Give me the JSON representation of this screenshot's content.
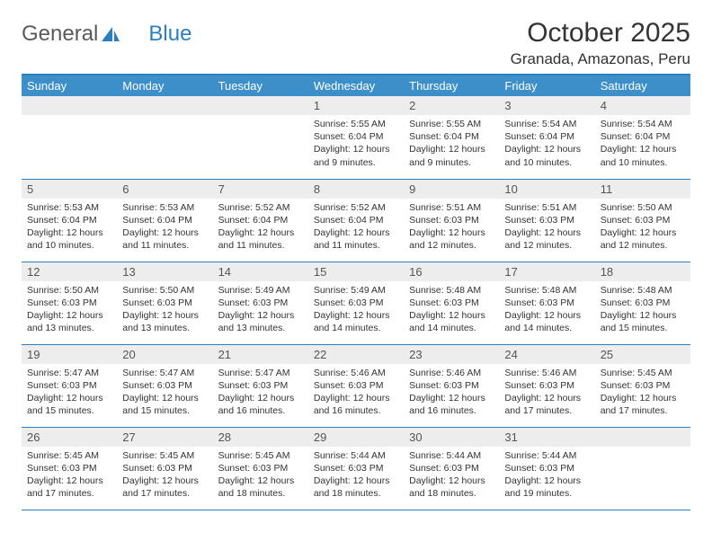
{
  "logo": {
    "text1": "General",
    "text2": "Blue"
  },
  "header": {
    "month_title": "October 2025",
    "location": "Granada, Amazonas, Peru"
  },
  "colors": {
    "header_bg": "#3d8fc9",
    "border": "#2b7fbf",
    "daynum_bg": "#ededed"
  },
  "days_of_week": [
    "Sunday",
    "Monday",
    "Tuesday",
    "Wednesday",
    "Thursday",
    "Friday",
    "Saturday"
  ],
  "weeks": [
    [
      null,
      null,
      null,
      {
        "n": "1",
        "sr": "5:55 AM",
        "ss": "6:04 PM",
        "dl": "12 hours and 9 minutes."
      },
      {
        "n": "2",
        "sr": "5:55 AM",
        "ss": "6:04 PM",
        "dl": "12 hours and 9 minutes."
      },
      {
        "n": "3",
        "sr": "5:54 AM",
        "ss": "6:04 PM",
        "dl": "12 hours and 10 minutes."
      },
      {
        "n": "4",
        "sr": "5:54 AM",
        "ss": "6:04 PM",
        "dl": "12 hours and 10 minutes."
      }
    ],
    [
      {
        "n": "5",
        "sr": "5:53 AM",
        "ss": "6:04 PM",
        "dl": "12 hours and 10 minutes."
      },
      {
        "n": "6",
        "sr": "5:53 AM",
        "ss": "6:04 PM",
        "dl": "12 hours and 11 minutes."
      },
      {
        "n": "7",
        "sr": "5:52 AM",
        "ss": "6:04 PM",
        "dl": "12 hours and 11 minutes."
      },
      {
        "n": "8",
        "sr": "5:52 AM",
        "ss": "6:04 PM",
        "dl": "12 hours and 11 minutes."
      },
      {
        "n": "9",
        "sr": "5:51 AM",
        "ss": "6:03 PM",
        "dl": "12 hours and 12 minutes."
      },
      {
        "n": "10",
        "sr": "5:51 AM",
        "ss": "6:03 PM",
        "dl": "12 hours and 12 minutes."
      },
      {
        "n": "11",
        "sr": "5:50 AM",
        "ss": "6:03 PM",
        "dl": "12 hours and 12 minutes."
      }
    ],
    [
      {
        "n": "12",
        "sr": "5:50 AM",
        "ss": "6:03 PM",
        "dl": "12 hours and 13 minutes."
      },
      {
        "n": "13",
        "sr": "5:50 AM",
        "ss": "6:03 PM",
        "dl": "12 hours and 13 minutes."
      },
      {
        "n": "14",
        "sr": "5:49 AM",
        "ss": "6:03 PM",
        "dl": "12 hours and 13 minutes."
      },
      {
        "n": "15",
        "sr": "5:49 AM",
        "ss": "6:03 PM",
        "dl": "12 hours and 14 minutes."
      },
      {
        "n": "16",
        "sr": "5:48 AM",
        "ss": "6:03 PM",
        "dl": "12 hours and 14 minutes."
      },
      {
        "n": "17",
        "sr": "5:48 AM",
        "ss": "6:03 PM",
        "dl": "12 hours and 14 minutes."
      },
      {
        "n": "18",
        "sr": "5:48 AM",
        "ss": "6:03 PM",
        "dl": "12 hours and 15 minutes."
      }
    ],
    [
      {
        "n": "19",
        "sr": "5:47 AM",
        "ss": "6:03 PM",
        "dl": "12 hours and 15 minutes."
      },
      {
        "n": "20",
        "sr": "5:47 AM",
        "ss": "6:03 PM",
        "dl": "12 hours and 15 minutes."
      },
      {
        "n": "21",
        "sr": "5:47 AM",
        "ss": "6:03 PM",
        "dl": "12 hours and 16 minutes."
      },
      {
        "n": "22",
        "sr": "5:46 AM",
        "ss": "6:03 PM",
        "dl": "12 hours and 16 minutes."
      },
      {
        "n": "23",
        "sr": "5:46 AM",
        "ss": "6:03 PM",
        "dl": "12 hours and 16 minutes."
      },
      {
        "n": "24",
        "sr": "5:46 AM",
        "ss": "6:03 PM",
        "dl": "12 hours and 17 minutes."
      },
      {
        "n": "25",
        "sr": "5:45 AM",
        "ss": "6:03 PM",
        "dl": "12 hours and 17 minutes."
      }
    ],
    [
      {
        "n": "26",
        "sr": "5:45 AM",
        "ss": "6:03 PM",
        "dl": "12 hours and 17 minutes."
      },
      {
        "n": "27",
        "sr": "5:45 AM",
        "ss": "6:03 PM",
        "dl": "12 hours and 17 minutes."
      },
      {
        "n": "28",
        "sr": "5:45 AM",
        "ss": "6:03 PM",
        "dl": "12 hours and 18 minutes."
      },
      {
        "n": "29",
        "sr": "5:44 AM",
        "ss": "6:03 PM",
        "dl": "12 hours and 18 minutes."
      },
      {
        "n": "30",
        "sr": "5:44 AM",
        "ss": "6:03 PM",
        "dl": "12 hours and 18 minutes."
      },
      {
        "n": "31",
        "sr": "5:44 AM",
        "ss": "6:03 PM",
        "dl": "12 hours and 19 minutes."
      },
      null
    ]
  ],
  "labels": {
    "sunrise": "Sunrise:",
    "sunset": "Sunset:",
    "daylight": "Daylight:"
  }
}
